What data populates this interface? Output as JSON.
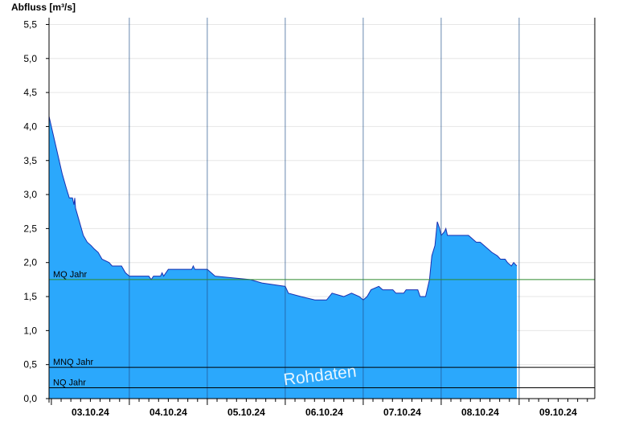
{
  "chart_data": {
    "type": "area",
    "title": "",
    "ylabel": "Abfluss [m³/s]",
    "xlabel": "",
    "ylim": [
      0,
      5.6
    ],
    "y_ticks": [
      "0,0",
      "0,5",
      "1,0",
      "1,5",
      "2,0",
      "2,5",
      "3,0",
      "3,5",
      "4,0",
      "4,5",
      "5,0",
      "5,5"
    ],
    "y_tick_values": [
      0,
      0.5,
      1.0,
      1.5,
      2.0,
      2.5,
      3.0,
      3.5,
      4.0,
      4.5,
      5.0,
      5.5
    ],
    "x_tick_labels": [
      "03.10.24",
      "04.10.24",
      "05.10.24",
      "06.10.24",
      "07.10.24",
      "08.10.24",
      "09.10.24"
    ],
    "x_range_days": [
      2.97,
      9.97
    ],
    "grid": "horizontal-light",
    "watermark": "Rohdaten",
    "fill_color": "#2ba8fc",
    "line_color": "#1a2fb0",
    "reference_lines": [
      {
        "name": "MQ Jahr",
        "value": 1.75,
        "color": "#2e8b2e"
      },
      {
        "name": "MNQ Jahr",
        "value": 0.46,
        "color": "#000000"
      },
      {
        "name": "NQ Jahr",
        "value": 0.16,
        "color": "#000000"
      }
    ],
    "series": [
      {
        "values": [
          [
            2.97,
            4.15
          ],
          [
            2.99,
            4.05
          ],
          [
            3.04,
            3.8
          ],
          [
            3.09,
            3.55
          ],
          [
            3.14,
            3.3
          ],
          [
            3.19,
            3.1
          ],
          [
            3.23,
            2.95
          ],
          [
            3.27,
            2.95
          ],
          [
            3.29,
            2.85
          ],
          [
            3.3,
            2.95
          ],
          [
            3.31,
            2.8
          ],
          [
            3.36,
            2.6
          ],
          [
            3.41,
            2.4
          ],
          [
            3.46,
            2.3
          ],
          [
            3.51,
            2.25
          ],
          [
            3.55,
            2.2
          ],
          [
            3.6,
            2.15
          ],
          [
            3.65,
            2.05
          ],
          [
            3.74,
            2.0
          ],
          [
            3.78,
            1.95
          ],
          [
            3.9,
            1.95
          ],
          [
            3.95,
            1.85
          ],
          [
            4.0,
            1.8
          ],
          [
            4.25,
            1.8
          ],
          [
            4.28,
            1.75
          ],
          [
            4.31,
            1.8
          ],
          [
            4.4,
            1.8
          ],
          [
            4.42,
            1.85
          ],
          [
            4.44,
            1.8
          ],
          [
            4.5,
            1.9
          ],
          [
            4.77,
            1.9
          ],
          [
            4.8,
            1.9
          ],
          [
            4.82,
            1.95
          ],
          [
            4.84,
            1.9
          ],
          [
            5.0,
            1.9
          ],
          [
            5.05,
            1.85
          ],
          [
            5.1,
            1.8
          ],
          [
            5.55,
            1.75
          ],
          [
            5.7,
            1.7
          ],
          [
            6.0,
            1.65
          ],
          [
            6.04,
            1.55
          ],
          [
            6.2,
            1.5
          ],
          [
            6.38,
            1.45
          ],
          [
            6.53,
            1.45
          ],
          [
            6.6,
            1.55
          ],
          [
            6.75,
            1.5
          ],
          [
            6.85,
            1.55
          ],
          [
            6.95,
            1.5
          ],
          [
            7.0,
            1.45
          ],
          [
            7.05,
            1.5
          ],
          [
            7.1,
            1.6
          ],
          [
            7.2,
            1.65
          ],
          [
            7.25,
            1.6
          ],
          [
            7.38,
            1.6
          ],
          [
            7.42,
            1.55
          ],
          [
            7.52,
            1.55
          ],
          [
            7.55,
            1.6
          ],
          [
            7.7,
            1.6
          ],
          [
            7.73,
            1.5
          ],
          [
            7.8,
            1.5
          ],
          [
            7.82,
            1.6
          ],
          [
            7.85,
            1.75
          ],
          [
            7.88,
            2.1
          ],
          [
            7.92,
            2.25
          ],
          [
            7.95,
            2.6
          ],
          [
            7.98,
            2.5
          ],
          [
            8.0,
            2.4
          ],
          [
            8.04,
            2.45
          ],
          [
            8.06,
            2.5
          ],
          [
            8.08,
            2.4
          ],
          [
            8.1,
            2.4
          ],
          [
            8.35,
            2.4
          ],
          [
            8.4,
            2.35
          ],
          [
            8.45,
            2.3
          ],
          [
            8.5,
            2.3
          ],
          [
            8.55,
            2.25
          ],
          [
            8.6,
            2.2
          ],
          [
            8.65,
            2.15
          ],
          [
            8.72,
            2.1
          ],
          [
            8.76,
            2.05
          ],
          [
            8.82,
            2.05
          ],
          [
            8.85,
            2.0
          ],
          [
            8.9,
            1.95
          ],
          [
            8.93,
            2.0
          ],
          [
            8.97,
            1.95
          ]
        ]
      }
    ]
  }
}
